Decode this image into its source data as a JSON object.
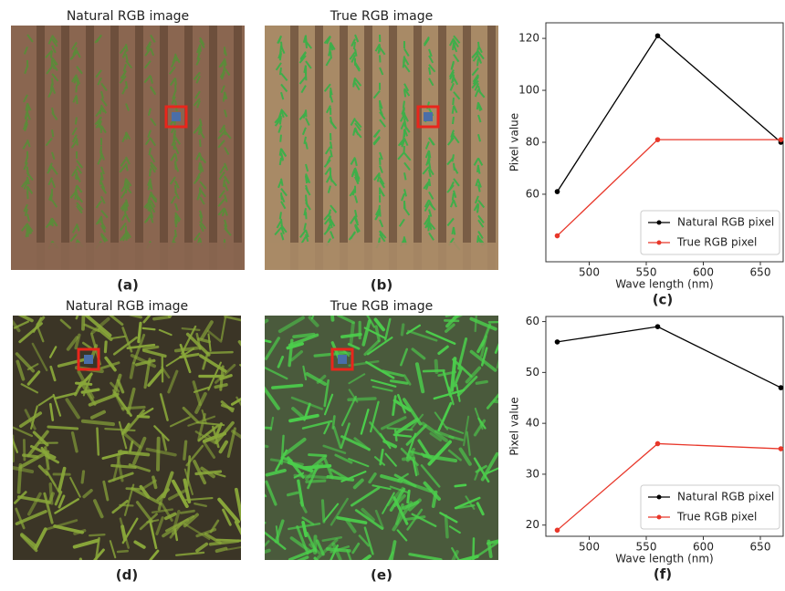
{
  "images": [
    {
      "title": "Natural RGB image",
      "caption": "(a)"
    },
    {
      "title": "True RGB image",
      "caption": "(b)"
    },
    {
      "title": "Natural RGB image",
      "caption": "(d)"
    },
    {
      "title": "True RGB image",
      "caption": "(e)"
    }
  ],
  "chart_data": [
    {
      "type": "line",
      "caption": "(c)",
      "x_label": "Wave length (nm)",
      "y_label": "Pixel value",
      "x": [
        472,
        560,
        668
      ],
      "xlim": [
        462,
        670
      ],
      "xticks": [
        500,
        550,
        600,
        650
      ],
      "ylim": [
        34,
        126
      ],
      "yticks": [
        60,
        80,
        100,
        120
      ],
      "legend": "lower right",
      "series": [
        {
          "name": "Natural RGB pixel",
          "color": "#000000",
          "values": [
            61,
            121,
            80
          ]
        },
        {
          "name": "True RGB pixel",
          "color": "#e8372a",
          "values": [
            44,
            81,
            81
          ]
        }
      ]
    },
    {
      "type": "line",
      "caption": "(f)",
      "x_label": "Wave length (nm)",
      "y_label": "Pixel value",
      "x": [
        472,
        560,
        668
      ],
      "xlim": [
        462,
        670
      ],
      "xticks": [
        500,
        550,
        600,
        650
      ],
      "ylim": [
        17.8,
        61
      ],
      "yticks": [
        20,
        30,
        40,
        50,
        60
      ],
      "legend": "lower right",
      "series": [
        {
          "name": "Natural RGB pixel",
          "color": "#000000",
          "values": [
            56,
            59,
            47
          ]
        },
        {
          "name": "True RGB pixel",
          "color": "#e8372a",
          "values": [
            19,
            36,
            35
          ]
        }
      ]
    }
  ]
}
